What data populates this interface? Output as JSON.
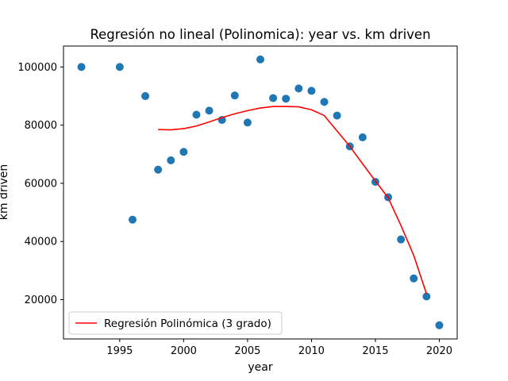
{
  "chart_data": {
    "type": "scatter",
    "title": "Regresión no lineal (Polinomica): year vs. km driven",
    "xlabel": "year",
    "ylabel": "km driven",
    "xlim": [
      1990.6,
      2021.4
    ],
    "ylim": [
      6500,
      107200
    ],
    "xticks": [
      1995,
      2000,
      2005,
      2010,
      2015,
      2020
    ],
    "yticks": [
      20000,
      40000,
      60000,
      80000,
      100000
    ],
    "grid": false,
    "legend_position": "lower-left",
    "series": [
      {
        "kind": "scatter",
        "color": "#1f77b4",
        "x": [
          1992,
          1995,
          1996,
          1997,
          1998,
          1999,
          2000,
          2001,
          2002,
          2003,
          2004,
          2005,
          2006,
          2007,
          2008,
          2009,
          2010,
          2011,
          2012,
          2013,
          2014,
          2015,
          2016,
          2017,
          2018,
          2019,
          2020
        ],
        "y": [
          100000,
          100000,
          47500,
          90000,
          64700,
          67900,
          70800,
          83600,
          85000,
          81800,
          90200,
          80900,
          102600,
          89300,
          89100,
          92600,
          91800,
          88000,
          83300,
          72700,
          75800,
          60500,
          55200,
          40700,
          27300,
          21100,
          11200
        ]
      },
      {
        "kind": "line",
        "name": "Regresión Polinómica (3 grado)",
        "color": "#ff0000",
        "x": [
          1998,
          1999,
          2000,
          2001,
          2002,
          2003,
          2004,
          2005,
          2006,
          2007,
          2008,
          2009,
          2010,
          2011,
          2012,
          2013,
          2014,
          2015,
          2016,
          2017,
          2018,
          2019
        ],
        "y": [
          78500,
          78400,
          78800,
          79700,
          81100,
          82600,
          83900,
          85000,
          85900,
          86400,
          86400,
          86300,
          85300,
          83300,
          78000,
          72700,
          66700,
          60800,
          55000,
          45500,
          35200,
          22000
        ]
      }
    ]
  }
}
